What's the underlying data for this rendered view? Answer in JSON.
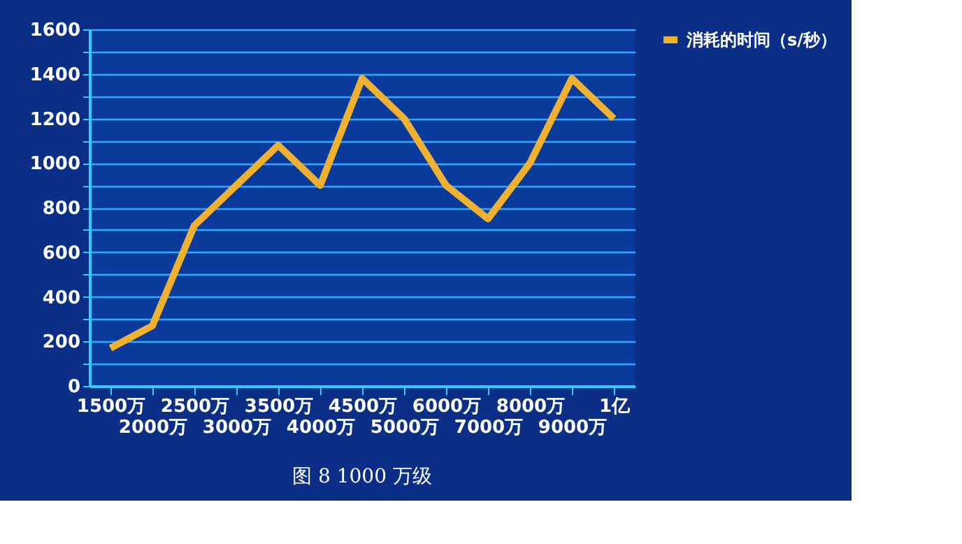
{
  "chart_data": {
    "type": "line",
    "subtitle": "图 8 1000 万级",
    "categories": [
      "1500万",
      "2000万",
      "2500万",
      "3000万",
      "3500万",
      "4000万",
      "4500万",
      "5000万",
      "6000万",
      "7000万",
      "8000万",
      "9000万",
      "1亿"
    ],
    "series": [
      {
        "name": "消耗的时间（s/秒）",
        "color": "#f0b030",
        "values": [
          170,
          270,
          720,
          900,
          1080,
          900,
          1380,
          1200,
          900,
          750,
          1000,
          1380,
          1200
        ]
      }
    ],
    "ylim": [
      0,
      1600
    ],
    "yticks": [
      0,
      {
        "value": 100,
        "label": null
      },
      200,
      {
        "value": 300,
        "label": null
      },
      400,
      {
        "value": 500,
        "label": null
      },
      600,
      {
        "value": 700,
        "label": null
      },
      800,
      {
        "value": 900,
        "label": null
      },
      1000,
      {
        "value": 1100,
        "label": null
      },
      1200,
      {
        "value": 1300,
        "label": null
      },
      1400,
      {
        "value": 1500,
        "label": null
      },
      1600
    ],
    "grid": "y",
    "legend": "right",
    "marker": "none",
    "line_style": "solid"
  }
}
